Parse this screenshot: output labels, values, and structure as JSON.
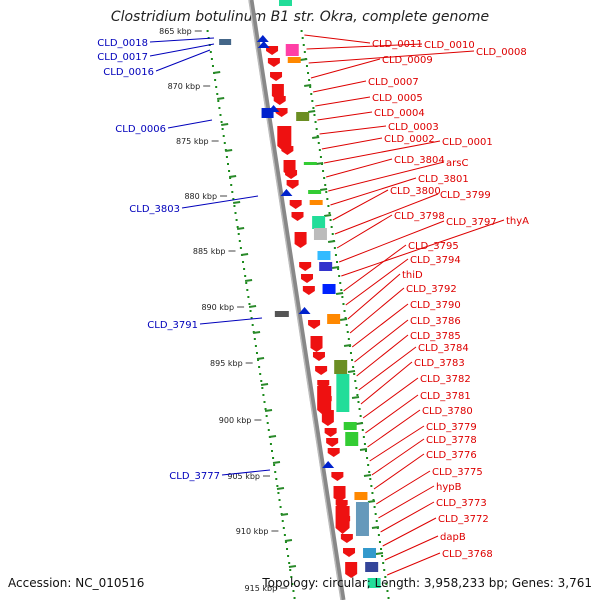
{
  "header": {
    "title": "Clostridium botulinum B1 str. Okra, complete genome"
  },
  "footer": {
    "accession": "Accession: NC_010516",
    "stats": "Topology: circular; Length: 3,958,233 bp; Genes: 3,761"
  },
  "colors": {
    "forward_label": "#dd0000",
    "reverse_label": "#0000bb",
    "backbone": "#888888",
    "gc_dots": "#1a8a1a"
  },
  "position_ticks": [
    "865 kbp",
    "870 kbp",
    "875 kbp",
    "880 kbp",
    "885 kbp",
    "890 kbp",
    "895 kbp",
    "900 kbp",
    "905 kbp",
    "910 kbp",
    "915 kbp"
  ],
  "forward_genes": [
    "CLD_0011",
    "CLD_0010",
    "CLD_0008",
    "CLD_0009",
    "CLD_0007",
    "CLD_0005",
    "CLD_0004",
    "CLD_0003",
    "CLD_0002",
    "CLD_0001",
    "CLD_3804",
    "arsC",
    "CLD_3801",
    "CLD_3800",
    "CLD_3799",
    "CLD_3798",
    "CLD_3797",
    "thyA",
    "CLD_3795",
    "CLD_3794",
    "thiD",
    "CLD_3792",
    "CLD_3790",
    "CLD_3786",
    "CLD_3785",
    "CLD_3784",
    "CLD_3783",
    "CLD_3782",
    "CLD_3781",
    "CLD_3780",
    "CLD_3779",
    "CLD_3778",
    "CLD_3776",
    "CLD_3775",
    "hypB",
    "CLD_3773",
    "CLD_3772",
    "dapB",
    "CLD_3768"
  ],
  "reverse_genes": [
    "CLD_0018",
    "CLD_0017",
    "CLD_0016",
    "CLD_0006",
    "CLD_3803",
    "CLD_3791",
    "CLD_3777"
  ]
}
